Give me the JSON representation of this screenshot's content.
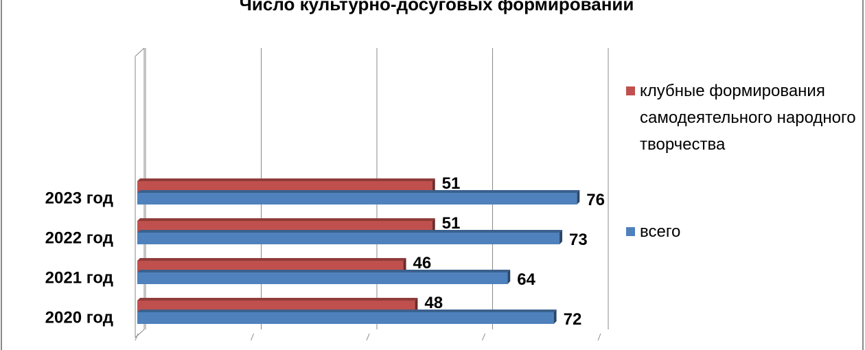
{
  "chart_data": {
    "type": "bar",
    "orientation": "horizontal",
    "title": "Число культурно-досуговых формирований",
    "categories": [
      "2020 год",
      "2021 год",
      "2022 год",
      "2023 год"
    ],
    "series": [
      {
        "name": "клубные формирования самодеятельного народного творчества",
        "color": "#c0504d",
        "values": [
          48,
          46,
          51,
          51
        ]
      },
      {
        "name": "всего",
        "color": "#4f81bd",
        "values": [
          72,
          64,
          73,
          76
        ]
      }
    ],
    "xlim": [
      0,
      80
    ],
    "xticks": [
      0,
      20,
      40,
      60,
      80
    ],
    "tick_labels": false,
    "grid": true,
    "legend": "right"
  }
}
